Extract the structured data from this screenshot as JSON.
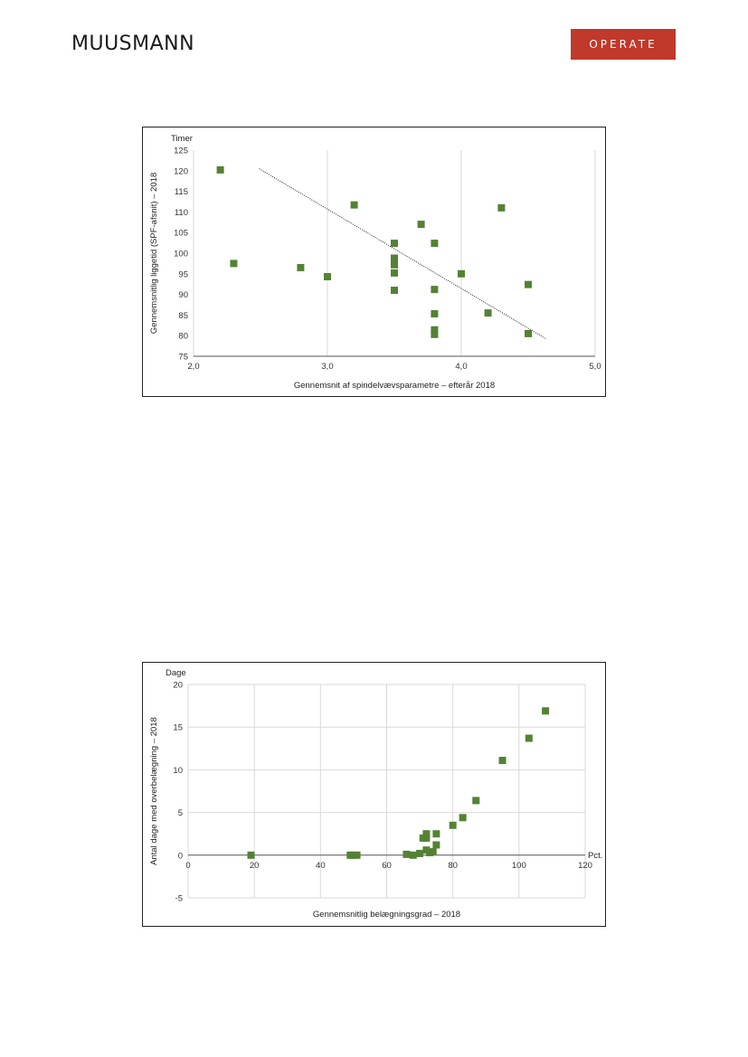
{
  "header": {
    "left_logo": "MUUSMANN",
    "right_logo": "OPERATE",
    "right_logo_color": "#c0392b"
  },
  "chart_data": [
    {
      "type": "scatter",
      "title": "",
      "unit_label": "Timer",
      "xlabel": "Gennemsnit af spindelvævsparametre – efterår 2018",
      "ylabel": "Gennemsnitlig liggetid (SPF-afsnit) – 2018",
      "xlim": [
        2.0,
        5.0
      ],
      "ylim": [
        75,
        125
      ],
      "x_ticks": [
        2.0,
        3.0,
        4.0,
        5.0
      ],
      "x_tick_labels": [
        "2,0",
        "3,0",
        "4,0",
        "5,0"
      ],
      "y_ticks": [
        75,
        80,
        85,
        90,
        95,
        100,
        105,
        110,
        115,
        120,
        125
      ],
      "y_tick_labels": [
        "75",
        "80",
        "85",
        "90",
        "95",
        "100",
        "105",
        "110",
        "115",
        "120",
        "125"
      ],
      "grid": "vertical",
      "legend": "none",
      "marker_color": "#548235",
      "points": [
        {
          "x": 2.2,
          "y": 120.2
        },
        {
          "x": 2.3,
          "y": 97.5
        },
        {
          "x": 2.8,
          "y": 96.5
        },
        {
          "x": 3.0,
          "y": 94.3
        },
        {
          "x": 3.2,
          "y": 111.7
        },
        {
          "x": 3.5,
          "y": 102.4
        },
        {
          "x": 3.5,
          "y": 98.8
        },
        {
          "x": 3.5,
          "y": 97.2
        },
        {
          "x": 3.5,
          "y": 95.2
        },
        {
          "x": 3.5,
          "y": 91.0
        },
        {
          "x": 3.7,
          "y": 107.0
        },
        {
          "x": 3.8,
          "y": 102.4
        },
        {
          "x": 3.8,
          "y": 91.2
        },
        {
          "x": 3.8,
          "y": 85.3
        },
        {
          "x": 3.8,
          "y": 81.4
        },
        {
          "x": 3.8,
          "y": 80.3
        },
        {
          "x": 4.0,
          "y": 95.0
        },
        {
          "x": 4.2,
          "y": 85.5
        },
        {
          "x": 4.3,
          "y": 111.0
        },
        {
          "x": 4.5,
          "y": 92.4
        },
        {
          "x": 4.5,
          "y": 80.5
        }
      ],
      "trendline": {
        "x": [
          2.49,
          4.63
        ],
        "y": [
          120.5,
          79.3
        ],
        "color": "#333333"
      }
    },
    {
      "type": "scatter",
      "title": "",
      "unit_label": "Dage",
      "x_unit_label": "Pct.",
      "xlabel": "Gennemsnitlig belægningsgrad – 2018",
      "ylabel": "Antal dage med overbelægning – 2018",
      "xlim": [
        0,
        120
      ],
      "ylim": [
        -5,
        20
      ],
      "x_ticks": [
        0,
        20,
        40,
        60,
        80,
        100,
        120
      ],
      "x_tick_labels": [
        "0",
        "20",
        "40",
        "60",
        "80",
        "100",
        "120"
      ],
      "y_ticks": [
        -5,
        0,
        5,
        10,
        15,
        20
      ],
      "y_tick_labels": [
        "-5",
        "0",
        "5",
        "10",
        "15",
        "20"
      ],
      "grid": "both",
      "legend": "none",
      "marker_color": "#548235",
      "points": [
        {
          "x": 19,
          "y": 0
        },
        {
          "x": 49,
          "y": 0
        },
        {
          "x": 50,
          "y": 0
        },
        {
          "x": 51,
          "y": 0
        },
        {
          "x": 66,
          "y": 0.1
        },
        {
          "x": 68,
          "y": 0
        },
        {
          "x": 70,
          "y": 0.2
        },
        {
          "x": 71,
          "y": 2.0
        },
        {
          "x": 72,
          "y": 2.5
        },
        {
          "x": 72,
          "y": 2.0
        },
        {
          "x": 72,
          "y": 0.6
        },
        {
          "x": 73,
          "y": 0.3
        },
        {
          "x": 74,
          "y": 0.4
        },
        {
          "x": 75,
          "y": 2.5
        },
        {
          "x": 75,
          "y": 1.2
        },
        {
          "x": 80,
          "y": 3.5
        },
        {
          "x": 83,
          "y": 4.4
        },
        {
          "x": 87,
          "y": 6.4
        },
        {
          "x": 95,
          "y": 11.1
        },
        {
          "x": 103,
          "y": 13.7
        },
        {
          "x": 108,
          "y": 16.9
        }
      ]
    }
  ]
}
